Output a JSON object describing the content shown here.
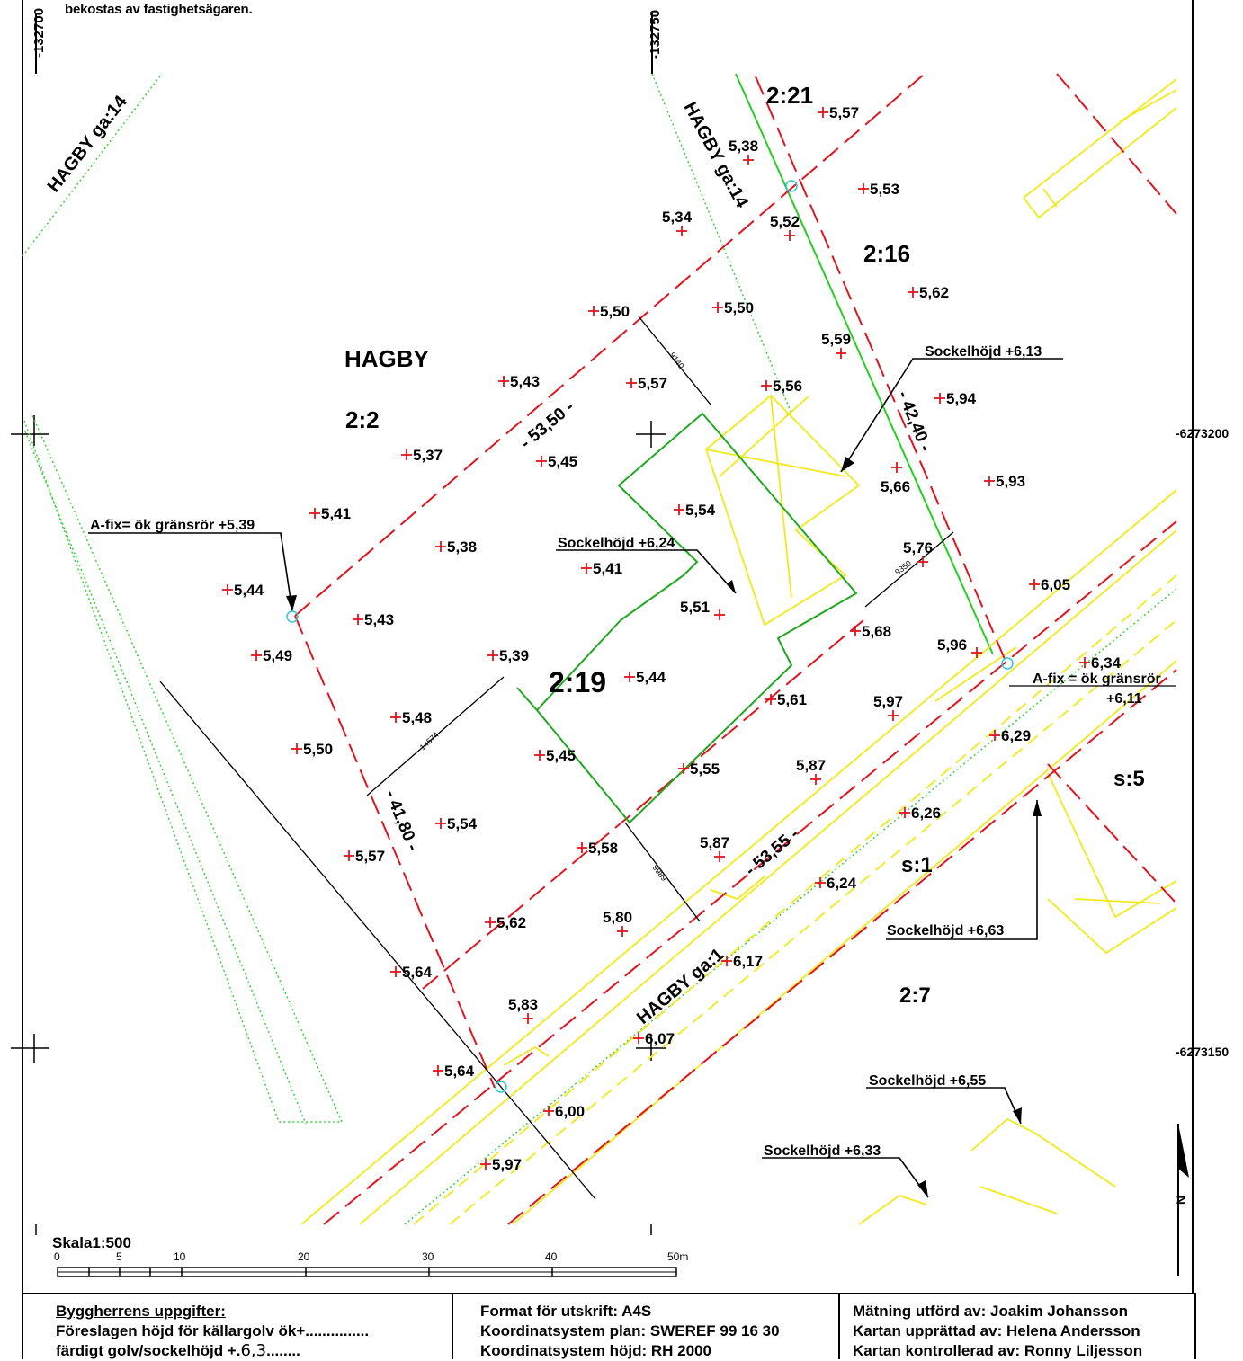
{
  "header": {
    "note": "bekostas av fastighetsägaren."
  },
  "coords": {
    "x_left": "-132700",
    "x_right": "-132750",
    "y_top": "-6273200",
    "y_bottom": "-6273150"
  },
  "parcels": {
    "hagby": "HAGBY",
    "p2_2": "2:2",
    "p2_19": "2:19",
    "p2_21": "2:21",
    "p2_16": "2:16",
    "s5": "s:5",
    "s1": "s:1",
    "p2_7": "2:7",
    "road_ga14_left": "HAGBY ga:14",
    "road_ga14_mid": "HAGBY ga:14",
    "road_ga1": "HAGBY ga:1"
  },
  "boundary_lengths": {
    "top": "- 53,50 -",
    "right": "- 42,40 -",
    "left": "- 41,80 -",
    "bottom": "- 53,55 -"
  },
  "dimensions": {
    "d1": "9140",
    "d2": "9350",
    "d3": "14574",
    "d4": "9989"
  },
  "callouts": {
    "afix_left": "A-fix= ök gränsrör +5,39",
    "afix_right_1": "A-fix = ök gränsrör",
    "afix_right_2": "+6,11",
    "sockel_613": "Sockelhöjd +6,13",
    "sockel_624": "Sockelhöjd +6,24",
    "sockel_663": "Sockelhöjd +6,63",
    "sockel_655": "Sockelhöjd +6,55",
    "sockel_633": "Sockelhöjd +6,33"
  },
  "elevations": {
    "e1": "5,57",
    "e2": "5,38",
    "e3": "5,53",
    "e4": "5,34",
    "e5": "5,52",
    "e6": "5,62",
    "e7": "5,50",
    "e8": "5,50",
    "e9": "5,59",
    "e10": "5,43",
    "e11": "5,57",
    "e12": "5,56",
    "e13": "5,94",
    "e14": "5,37",
    "e15": "5,45",
    "e16": "5,66",
    "e17": "5,93",
    "e18": "5,41",
    "e19": "5,54",
    "e20": "5,38",
    "e21": "5,41",
    "e22": "5,76",
    "e23": "6,05",
    "e24": "5,44",
    "e25": "5,43",
    "e26": "5,51",
    "e27": "5,68",
    "e28": "5,96",
    "e29": "5,49",
    "e30": "5,39",
    "e31": "5,44",
    "e32": "6,34",
    "e33": "5,61",
    "e34": "5,97",
    "e35": "5,48",
    "e36": "6,29",
    "e37": "5,50",
    "e38": "5,45",
    "e39": "5,55",
    "e40": "5,87",
    "e41": "6,26",
    "e42": "5,54",
    "e43": "5,87",
    "e44": "5,58",
    "e45": "5,57",
    "e46": "6,24",
    "e47": "5,62",
    "e48": "5,80",
    "e49": "6,17",
    "e50": "5,64",
    "e51": "5,83",
    "e52": "6,07",
    "e53": "5,64",
    "e54": "6,00",
    "e55": "5,97"
  },
  "scale": {
    "title": "Skala1:500",
    "ticks": [
      "0",
      "5",
      "10",
      "20",
      "30",
      "40",
      "50m"
    ]
  },
  "north": "N",
  "footer": {
    "col1": {
      "heading": "Byggherrens uppgifter:",
      "line1": "Föreslagen höjd för källargolv ök+...............",
      "line2_prefix": "färdigt golv/sockelhöjd +.",
      "line2_hand": "6,3",
      "line2_suffix": "........"
    },
    "col2": {
      "line1": "Format för utskrift: A4S",
      "line2": "Koordinatsystem plan: SWEREF 99 16 30",
      "line3": "Koordinatsystem höjd: RH 2000"
    },
    "col3": {
      "line1": "Mätning utförd av: Joakim Johansson",
      "line2": "Kartan upprättad av: Helena Andersson",
      "line3": "Kartan kontrollerad av: Ronny Liljesson"
    }
  },
  "colors": {
    "boundary": "#e0141e",
    "house": "#f2ea18",
    "building": "#1fa81f",
    "green_line": "#22d022",
    "dotted": "#3ad03a",
    "marker": "#e0141e",
    "fixpoint": "#2fc6d8"
  }
}
